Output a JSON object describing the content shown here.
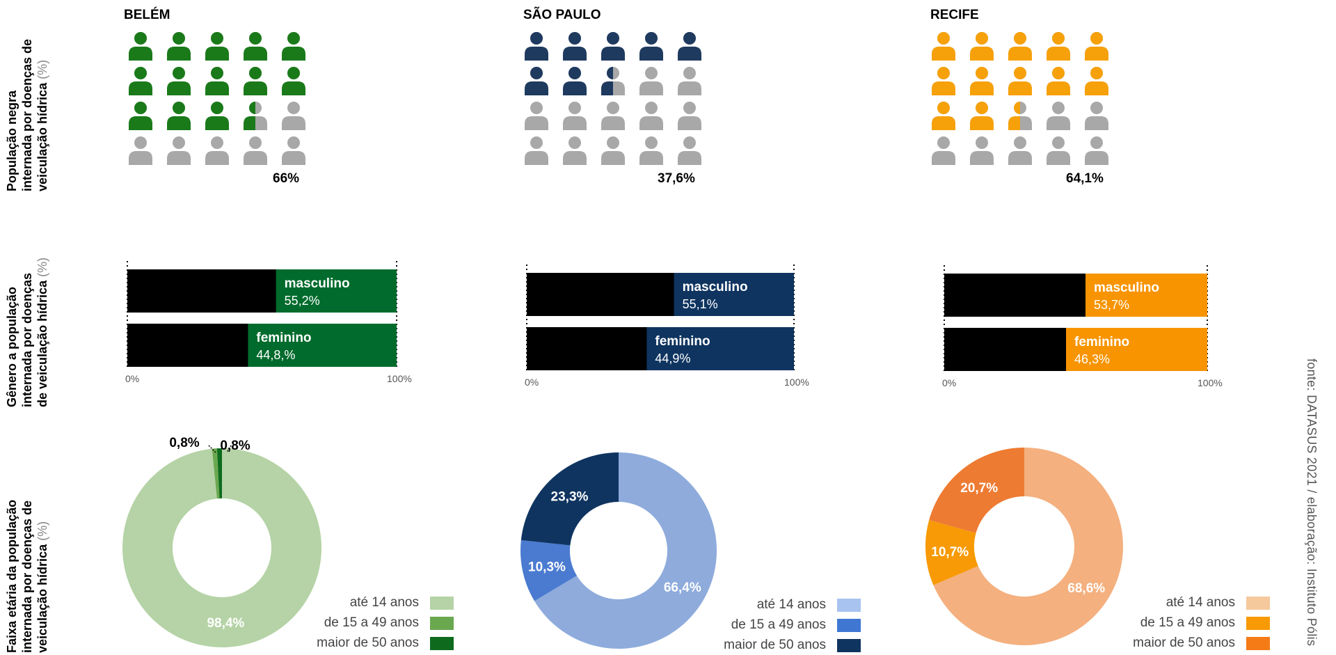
{
  "row_labels": {
    "pop": {
      "l1": "População negra",
      "l2": "internada por doenças de",
      "l3": "veiculação hídrica",
      "unit": "(%)"
    },
    "gender": {
      "l1": "Gênero a população",
      "l2": "internada por doenças",
      "l3": "de veiculação hídrica",
      "unit": "(%)"
    },
    "age": {
      "l1": "Faixa etária da população",
      "l2": "internada por doenças de",
      "l3": "veiculação hídrica",
      "unit": "(%)"
    }
  },
  "source": "fonte: DATASUS 2021 / elaboração: Instituto Pólis",
  "cities": [
    {
      "name": "BELÉM",
      "pct_label": "66%",
      "colors": {
        "dark": "#1a7a1a",
        "bar": "#006b2c",
        "pie": [
          "#b5d3a6",
          "#6aa84f",
          "#0e6b1e"
        ]
      },
      "gender": [
        {
          "label": "masculino",
          "value_label": "55,2%"
        },
        {
          "label": "feminino",
          "value_label": "44,8,%"
        }
      ],
      "axis": {
        "min_label": "0%",
        "max_label": "100%"
      },
      "pie_labels": [
        "98,4%",
        "0,8%",
        "0,8%"
      ],
      "legend": [
        "até 14 anos",
        "de 15 a 49 anos",
        "maior de 50 anos"
      ]
    },
    {
      "name": "SÃO PAULO",
      "pct_label": "37,6%",
      "colors": {
        "dark": "#1f3a5f",
        "bar": "#0f3460",
        "pie": [
          "#8eabdc",
          "#4a7bd0",
          "#0f3460"
        ]
      },
      "gender": [
        {
          "label": "masculino",
          "value_label": "55,1%"
        },
        {
          "label": "feminino",
          "value_label": "44,9%"
        }
      ],
      "axis": {
        "min_label": "0%",
        "max_label": "100%"
      },
      "pie_labels": [
        "66,4%",
        "10,3%",
        "23,3%"
      ],
      "legend": [
        "até 14 anos",
        "de 15 a 49 anos",
        "maior de 50 anos"
      ]
    },
    {
      "name": "RECIFE",
      "pct_label": "64,1%",
      "colors": {
        "dark": "#f7a10a",
        "bar": "#f79400",
        "pie": [
          "#f4b07f",
          "#f79a05",
          "#ee7b32"
        ]
      },
      "gender": [
        {
          "label": "masculino",
          "value_label": "53,7%"
        },
        {
          "label": "feminino",
          "value_label": "46,3%"
        }
      ],
      "axis": {
        "min_label": "0%",
        "max_label": "100%"
      },
      "pie_labels": [
        "68,6%",
        "10,7%",
        "20,7%"
      ],
      "legend": [
        "até 14 anos",
        "de 15 a 49 anos",
        "maior de 50 anos"
      ]
    }
  ],
  "chart_data": [
    {
      "type": "pictogram",
      "title": "BELÉM",
      "units": 20,
      "value": 66,
      "color": "#1a7a1a"
    },
    {
      "type": "pictogram",
      "title": "SÃO PAULO",
      "units": 20,
      "value": 37.6,
      "color": "#1f3a5f"
    },
    {
      "type": "pictogram",
      "title": "RECIFE",
      "units": 20,
      "value": 64.1,
      "color": "#f7a10a"
    },
    {
      "type": "bar",
      "title": "BELÉM",
      "categories": [
        "masculino",
        "feminino"
      ],
      "values": [
        55.2,
        44.8
      ],
      "xlim": [
        0,
        100
      ]
    },
    {
      "type": "bar",
      "title": "SÃO PAULO",
      "categories": [
        "masculino",
        "feminino"
      ],
      "values": [
        55.1,
        44.9
      ],
      "xlim": [
        0,
        100
      ]
    },
    {
      "type": "bar",
      "title": "RECIFE",
      "categories": [
        "masculino",
        "feminino"
      ],
      "values": [
        53.7,
        46.3
      ],
      "xlim": [
        0,
        100
      ]
    },
    {
      "type": "pie",
      "title": "BELÉM",
      "categories": [
        "até 14 anos",
        "de 15 a 49 anos",
        "maior de 50 anos"
      ],
      "values": [
        98.4,
        0.8,
        0.8
      ]
    },
    {
      "type": "pie",
      "title": "SÃO PAULO",
      "categories": [
        "até 14 anos",
        "de 15 a 49 anos",
        "maior de 50 anos"
      ],
      "values": [
        66.4,
        10.3,
        23.3
      ]
    },
    {
      "type": "pie",
      "title": "RECIFE",
      "categories": [
        "até 14 anos",
        "de 15 a 49 anos",
        "maior de 50 anos"
      ],
      "values": [
        68.6,
        10.7,
        20.7
      ]
    }
  ]
}
